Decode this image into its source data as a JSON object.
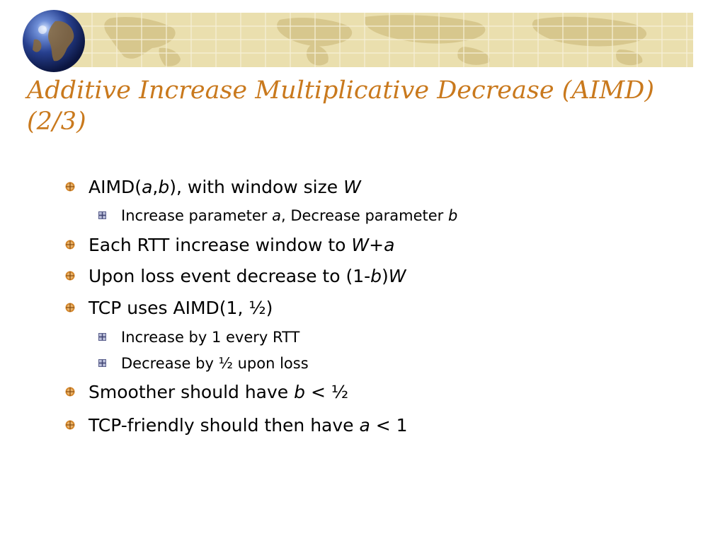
{
  "slide": {
    "title": "Additive Increase Multiplicative Decrease (AIMD) (2/3)",
    "accent_color": "#c9791d",
    "banner_color": "#eadfae",
    "bullets": [
      {
        "level": 1,
        "parts": [
          {
            "t": "AIMD("
          },
          {
            "t": "a",
            "i": true
          },
          {
            "t": ","
          },
          {
            "t": "b",
            "i": true
          },
          {
            "t": "), with window size "
          },
          {
            "t": "W",
            "i": true
          }
        ]
      },
      {
        "level": 2,
        "parts": [
          {
            "t": "Increase parameter "
          },
          {
            "t": "a",
            "i": true
          },
          {
            "t": ", Decrease parameter "
          },
          {
            "t": "b",
            "i": true
          }
        ]
      },
      {
        "level": 1,
        "parts": [
          {
            "t": "Each RTT increase window to "
          },
          {
            "t": "W+a",
            "i": true
          }
        ]
      },
      {
        "level": 1,
        "parts": [
          {
            "t": "Upon loss event decrease to (1-"
          },
          {
            "t": "b",
            "i": true
          },
          {
            "t": ")"
          },
          {
            "t": "W",
            "i": true
          }
        ]
      },
      {
        "level": 1,
        "parts": [
          {
            "t": "TCP uses AIMD(1, ½)"
          }
        ]
      },
      {
        "level": 2,
        "parts": [
          {
            "t": "Increase by 1 every RTT"
          }
        ]
      },
      {
        "level": 2,
        "parts": [
          {
            "t": "Decrease by ½ upon loss"
          }
        ]
      },
      {
        "level": 1,
        "parts": [
          {
            "t": "Smoother should have "
          },
          {
            "t": "b",
            "i": true
          },
          {
            "t": " < ½"
          }
        ]
      },
      {
        "level": 1,
        "parts": [
          {
            "t": "TCP-friendly should then have "
          },
          {
            "t": "a",
            "i": true
          },
          {
            "t": " < 1"
          }
        ]
      }
    ]
  }
}
